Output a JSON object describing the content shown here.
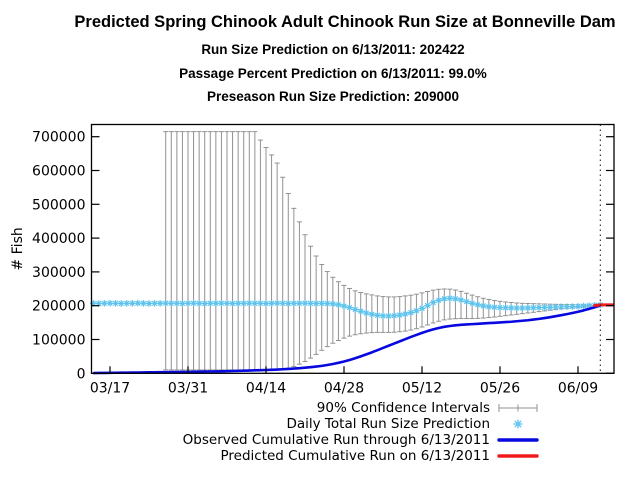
{
  "header": {
    "title": "Predicted Spring Chinook Adult Chinook Run Size at Bonneville Dam",
    "subtitle_run_size": "Run Size Prediction on 6/13/2011: 202422",
    "subtitle_passage_percent": "Passage Percent Prediction on 6/13/2011: 99.0%",
    "subtitle_preseason": "Preseason Run Size Prediction: 209000"
  },
  "legend": {
    "items": [
      {
        "label": "90% Confidence Intervals",
        "symbol": "error-bar",
        "color": "#919191"
      },
      {
        "label": "Daily Total Run Size Prediction",
        "symbol": "star",
        "color": "#5ec3ec"
      },
      {
        "label": "Observed Cumulative Run through 6/13/2011",
        "symbol": "line",
        "color": "#0808e0"
      },
      {
        "label": "Predicted Cumulative Run on 6/13/2011",
        "symbol": "line",
        "color": "#f21b1b"
      }
    ]
  },
  "chart_data": {
    "type": "line",
    "title": "Predicted Spring Chinook Adult Chinook Run Size at Bonneville Dam",
    "subtitles": [
      "Run Size Prediction on 6/13/2011: 202422",
      "Passage Percent Prediction on 6/13/2011: 99.0%",
      "Preseason Run Size Prediction: 209000"
    ],
    "xlabel": "",
    "ylabel": "# Fish",
    "ylim": [
      0,
      736000
    ],
    "grid": false,
    "legend_position": "bottom-right",
    "start_date": "03/14/2011",
    "xtick_days": [
      3,
      17,
      31,
      45,
      59,
      73,
      87
    ],
    "xtick_labels": [
      "03/17",
      "03/31",
      "04/14",
      "04/28",
      "05/12",
      "05/26",
      "06/09"
    ],
    "ytick_values": [
      0,
      100000,
      200000,
      300000,
      400000,
      500000,
      600000,
      700000
    ],
    "ytick_labels": [
      "0",
      "100000",
      "200000",
      "300000",
      "400000",
      "500000",
      "600000",
      "700000"
    ],
    "vline_day": 91,
    "vline_label": "6/13/2011",
    "series": [
      {
        "name": "90% Confidence Intervals",
        "type": "errorbar",
        "color": "#919191",
        "start_day": 13,
        "upper": [
          715000,
          715000,
          715000,
          715000,
          715000,
          715000,
          715000,
          715000,
          715000,
          715000,
          715000,
          715000,
          715000,
          715000,
          715000,
          715000,
          715000,
          690000,
          668000,
          646000,
          622000,
          580000,
          532000,
          488000,
          448000,
          410000,
          376000,
          347000,
          322000,
          301000,
          284000,
          271000,
          260000,
          251000,
          244000,
          239000,
          235000,
          232000,
          229000,
          227000,
          226000,
          226000,
          227000,
          229000,
          231000,
          234000,
          238000,
          242000,
          246000,
          248500,
          249500,
          249000,
          246500,
          242500,
          237000,
          231500,
          226500,
          222000,
          218500,
          215500,
          213000,
          211000,
          209500,
          208000,
          207000,
          206500,
          206000,
          205500,
          205000,
          204500,
          204000,
          203800,
          203500,
          203200,
          203000,
          202900,
          202800
        ],
        "lower": [
          10000,
          10000,
          10000,
          10000,
          10000,
          10000,
          10000,
          10000,
          10000,
          10000,
          10000,
          10000,
          10000,
          10000,
          10000,
          10000,
          10000,
          10000,
          10000,
          10000,
          10000,
          12000,
          15000,
          20000,
          27000,
          35000,
          45000,
          56000,
          68000,
          79000,
          89000,
          97000,
          104000,
          110000,
          114000,
          117000,
          119000,
          120500,
          121000,
          121000,
          121000,
          121500,
          123000,
          125000,
          128000,
          132000,
          137000,
          143000,
          149000,
          154000,
          158000,
          160500,
          161500,
          162000,
          162000,
          162000,
          162500,
          163500,
          165000,
          166500,
          168500,
          170500,
          172500,
          174500,
          176500,
          178500,
          180500,
          182500,
          184500,
          186500,
          188500,
          190500,
          192000,
          193500,
          195000,
          196500,
          198000
        ]
      },
      {
        "name": "Daily Total Run Size Prediction",
        "type": "scatter",
        "marker": "star",
        "color": "#5ec3ec",
        "start_day": 0,
        "values": [
          207000,
          206500,
          207000,
          207500,
          207000,
          206500,
          207000,
          207000,
          207500,
          207000,
          206500,
          207000,
          207000,
          207500,
          207000,
          207000,
          206500,
          207000,
          207500,
          207000,
          206500,
          207000,
          207000,
          207500,
          207000,
          206500,
          207000,
          207000,
          207500,
          207000,
          207000,
          206500,
          207000,
          207500,
          207000,
          206500,
          207000,
          207000,
          207500,
          207000,
          206500,
          207000,
          206500,
          205500,
          203000,
          199000,
          194500,
          189000,
          183500,
          178500,
          174500,
          171500,
          170000,
          169500,
          170500,
          172500,
          175500,
          179500,
          185000,
          192000,
          200500,
          209500,
          216000,
          220500,
          222000,
          220500,
          217000,
          212000,
          207000,
          203000,
          199500,
          197000,
          195500,
          194500,
          194000,
          193500,
          193000,
          193000,
          193500,
          194000,
          194500,
          195000,
          195500,
          196000,
          196500,
          197000,
          197500,
          198000,
          199000,
          200000,
          201200,
          202422
        ]
      },
      {
        "name": "Observed Cumulative Run through 6/13/2011",
        "type": "line",
        "color": "#0808e0",
        "width": 2.6,
        "start_day": 0,
        "values": [
          800,
          1000,
          1200,
          1400,
          1600,
          1800,
          2000,
          2200,
          2400,
          2600,
          2800,
          3000,
          3200,
          3400,
          3600,
          3800,
          4000,
          4200,
          4400,
          4700,
          5000,
          5300,
          5600,
          6000,
          6400,
          6800,
          7200,
          7700,
          8200,
          8700,
          9200,
          9800,
          10400,
          11000,
          12000,
          13000,
          14000,
          15200,
          16600,
          18200,
          20000,
          22000,
          24500,
          27500,
          31000,
          35000,
          39500,
          44500,
          50000,
          56000,
          62000,
          68500,
          75000,
          81500,
          88000,
          94500,
          101000,
          107500,
          113500,
          119500,
          125000,
          130000,
          134000,
          137500,
          140000,
          142000,
          143500,
          144500,
          145500,
          146500,
          147500,
          148500,
          149500,
          150500,
          151500,
          152500,
          154000,
          155500,
          157000,
          159000,
          161000,
          163500,
          166000,
          169000,
          172000,
          175000,
          178500,
          182000,
          186000,
          190500,
          195500,
          200500
        ]
      },
      {
        "name": "Predicted Cumulative Run on 6/13/2011",
        "type": "line",
        "color": "#f21b1b",
        "width": 3,
        "days": [
          90,
          91,
          93.3
        ],
        "values": [
          200500,
          202422,
          202422
        ]
      }
    ]
  }
}
